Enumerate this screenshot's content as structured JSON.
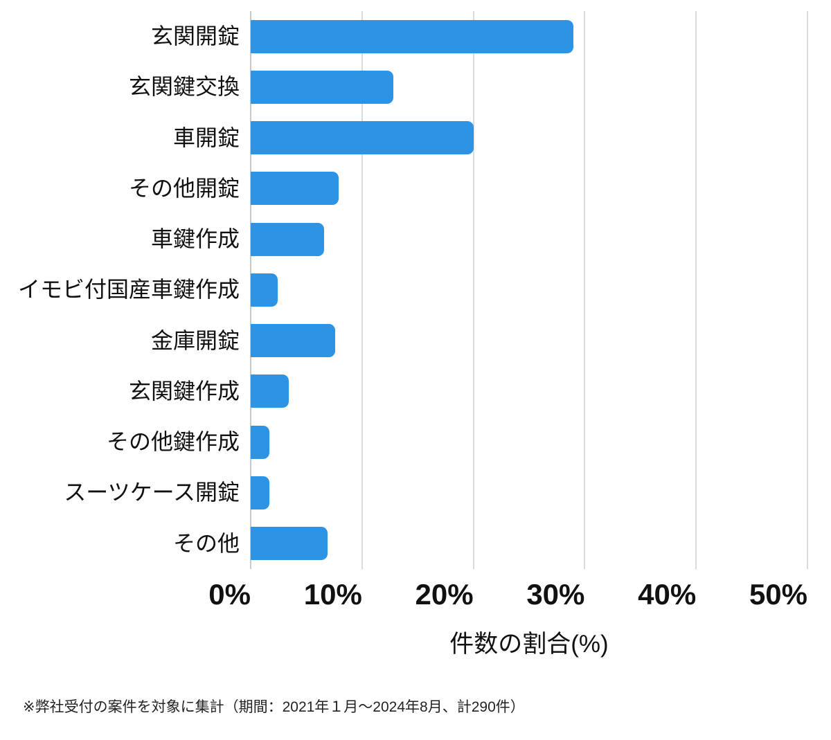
{
  "colors": {
    "background": "#ffffff",
    "bar": "#2d94e5",
    "gridline": "#dbdbdb",
    "axis_line": "#c9c9c9",
    "label_text": "#111111",
    "tick_text": "#111111",
    "footnote_text": "#222222"
  },
  "chart_data": {
    "type": "bar",
    "orientation": "horizontal",
    "title": "",
    "categories": [
      "玄関開錠",
      "玄関鍵交換",
      "車開錠",
      "その他開錠",
      "車鍵作成",
      "イモビ付国産車鍵作成",
      "金庫開錠",
      "玄関鍵作成",
      "その他鍵作成",
      "スーツケース開錠",
      "その他"
    ],
    "values": [
      29.0,
      12.8,
      20.0,
      7.9,
      6.6,
      2.4,
      7.6,
      3.4,
      1.7,
      1.7,
      6.9
    ],
    "value_unit": "%",
    "xlabel": "件数の割合(%)",
    "xlim": [
      0,
      50
    ],
    "xtick_labels": [
      "0%",
      "10%",
      "20%",
      "30%",
      "40%",
      "50%"
    ],
    "grid": true,
    "legend": false
  },
  "footnote": "※弊社受付の案件を対象に集計（期間：2021年１月～2024年8月、計290件）"
}
